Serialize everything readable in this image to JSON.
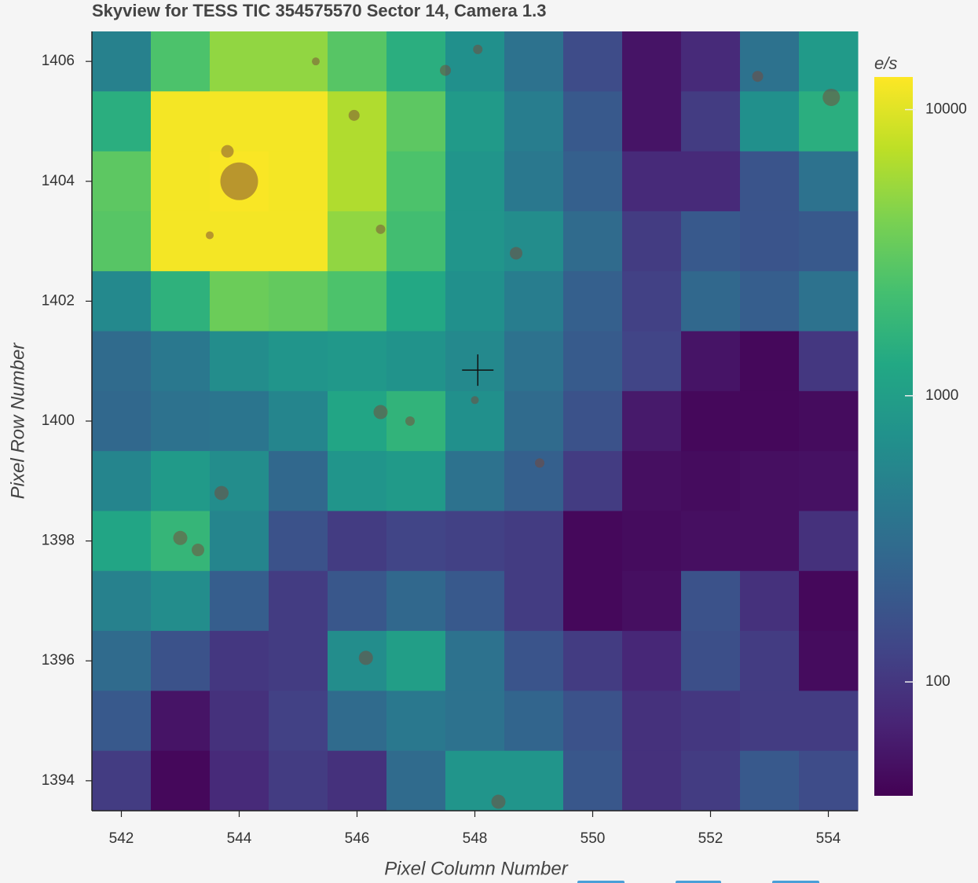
{
  "chart_data": {
    "type": "heatmap",
    "title": "Skyview for TESS TIC 354575570 Sector 14, Camera 1.3",
    "x_label": "Pixel Column Number",
    "y_label": "Pixel Row Number",
    "colorbar_label": "e/s",
    "x": [
      542,
      543,
      544,
      545,
      546,
      547,
      548,
      549,
      550,
      551,
      552,
      553,
      554
    ],
    "y": [
      1406,
      1405,
      1404,
      1403,
      1402,
      1401,
      1400,
      1399,
      1398,
      1397,
      1396,
      1395,
      1394
    ],
    "z": [
      [
        500,
        2500,
        5000,
        5000,
        2800,
        1500,
        700,
        350,
        150,
        55,
        80,
        350,
        900
      ],
      [
        1500,
        12000,
        12000,
        12000,
        6500,
        3000,
        900,
        450,
        200,
        55,
        110,
        700,
        1500
      ],
      [
        3000,
        12000,
        12500,
        12000,
        6500,
        2500,
        800,
        400,
        230,
        80,
        80,
        180,
        350
      ],
      [
        2800,
        12000,
        12000,
        12000,
        5000,
        2200,
        800,
        650,
        300,
        110,
        200,
        180,
        200
      ],
      [
        600,
        1600,
        3500,
        3200,
        2500,
        1300,
        700,
        450,
        230,
        120,
        280,
        220,
        350
      ],
      [
        300,
        400,
        650,
        800,
        850,
        750,
        600,
        350,
        210,
        130,
        55,
        45,
        100
      ],
      [
        280,
        350,
        380,
        550,
        1200,
        1700,
        700,
        300,
        170,
        60,
        45,
        45,
        48
      ],
      [
        550,
        900,
        650,
        280,
        800,
        900,
        350,
        230,
        110,
        50,
        48,
        50,
        52
      ],
      [
        1200,
        1800,
        550,
        170,
        110,
        130,
        120,
        110,
        45,
        48,
        50,
        50,
        90
      ],
      [
        500,
        650,
        220,
        110,
        190,
        280,
        200,
        110,
        45,
        50,
        170,
        90,
        45
      ],
      [
        300,
        170,
        100,
        110,
        650,
        1000,
        350,
        180,
        110,
        75,
        160,
        110,
        48
      ],
      [
        200,
        55,
        90,
        120,
        300,
        400,
        350,
        260,
        170,
        90,
        100,
        110,
        110
      ],
      [
        110,
        45,
        80,
        110,
        90,
        300,
        800,
        800,
        190,
        90,
        110,
        200,
        150
      ]
    ],
    "log_color": true,
    "colormap": "viridis",
    "clim": [
      40,
      13000
    ],
    "cticks": [
      100,
      1000,
      10000
    ],
    "xlim": [
      541.5,
      554.5
    ],
    "xticks": [
      542,
      544,
      546,
      548,
      550,
      552,
      554
    ],
    "ylim": [
      1393.5,
      1406.5
    ],
    "yticks": [
      1394,
      1396,
      1398,
      1400,
      1402,
      1404,
      1406
    ],
    "stars": {
      "color": "#7a4536",
      "x": [
        544.0,
        543.8,
        548.7,
        554.05,
        546.4,
        543.7,
        543.3,
        543.0,
        546.15,
        548.4,
        547.5,
        552.8,
        546.4,
        545.95,
        548.05,
        546.9,
        548.0,
        549.1,
        543.5,
        545.3
      ],
      "y": [
        1404.0,
        1404.5,
        1402.8,
        1405.4,
        1400.15,
        1398.8,
        1397.85,
        1398.05,
        1396.05,
        1393.65,
        1405.85,
        1405.75,
        1403.2,
        1405.1,
        1406.2,
        1400.0,
        1400.35,
        1399.3,
        1403.1,
        1406.0
      ],
      "sizes": [
        24,
        8,
        8,
        11,
        9,
        9,
        8,
        9,
        9,
        9,
        7,
        7,
        6,
        7,
        6,
        6,
        5,
        6,
        5,
        5
      ]
    },
    "target": {
      "x": 548.05,
      "y": 1400.85
    }
  }
}
